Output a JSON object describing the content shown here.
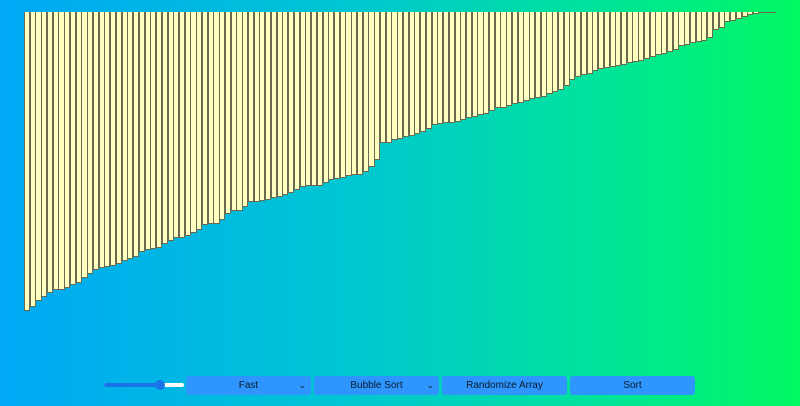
{
  "visualizer": {
    "bar_values": [
      299,
      295,
      289,
      285,
      281,
      278,
      278,
      276,
      273,
      271,
      266,
      262,
      258,
      256,
      255,
      254,
      252,
      249,
      247,
      245,
      240,
      238,
      237,
      236,
      232,
      229,
      226,
      226,
      224,
      221,
      218,
      213,
      212,
      212,
      208,
      202,
      199,
      199,
      195,
      190,
      190,
      189,
      188,
      186,
      185,
      183,
      181,
      178,
      175,
      174,
      174,
      174,
      171,
      168,
      167,
      166,
      164,
      163,
      163,
      160,
      155,
      148,
      131,
      131,
      128,
      127,
      125,
      124,
      122,
      120,
      117,
      113,
      112,
      111,
      111,
      110,
      108,
      106,
      105,
      103,
      102,
      99,
      96,
      96,
      94,
      92,
      91,
      89,
      87,
      86,
      85,
      82,
      80,
      78,
      74,
      68,
      65,
      63,
      62,
      59,
      57,
      56,
      55,
      54,
      53,
      51,
      50,
      49,
      47,
      45,
      43,
      42,
      40,
      38,
      34,
      33,
      31,
      30,
      29,
      26,
      18,
      16,
      10,
      9,
      7,
      5,
      3,
      2,
      1,
      1,
      1
    ]
  },
  "controls": {
    "size_slider_value": 0.7,
    "speed_select": {
      "selected": "Fast"
    },
    "algorithm_select": {
      "selected": "Bubble Sort"
    },
    "randomize_label": "Randomize Array",
    "sort_label": "Sort"
  },
  "icons": {
    "dropdown": "chevron-down-icon"
  },
  "colors": {
    "bar_fill": "#ffffc0",
    "bar_border": "#6a6a50",
    "button_bg": "#2f95ff",
    "slider_accent": "#1a73e8"
  }
}
